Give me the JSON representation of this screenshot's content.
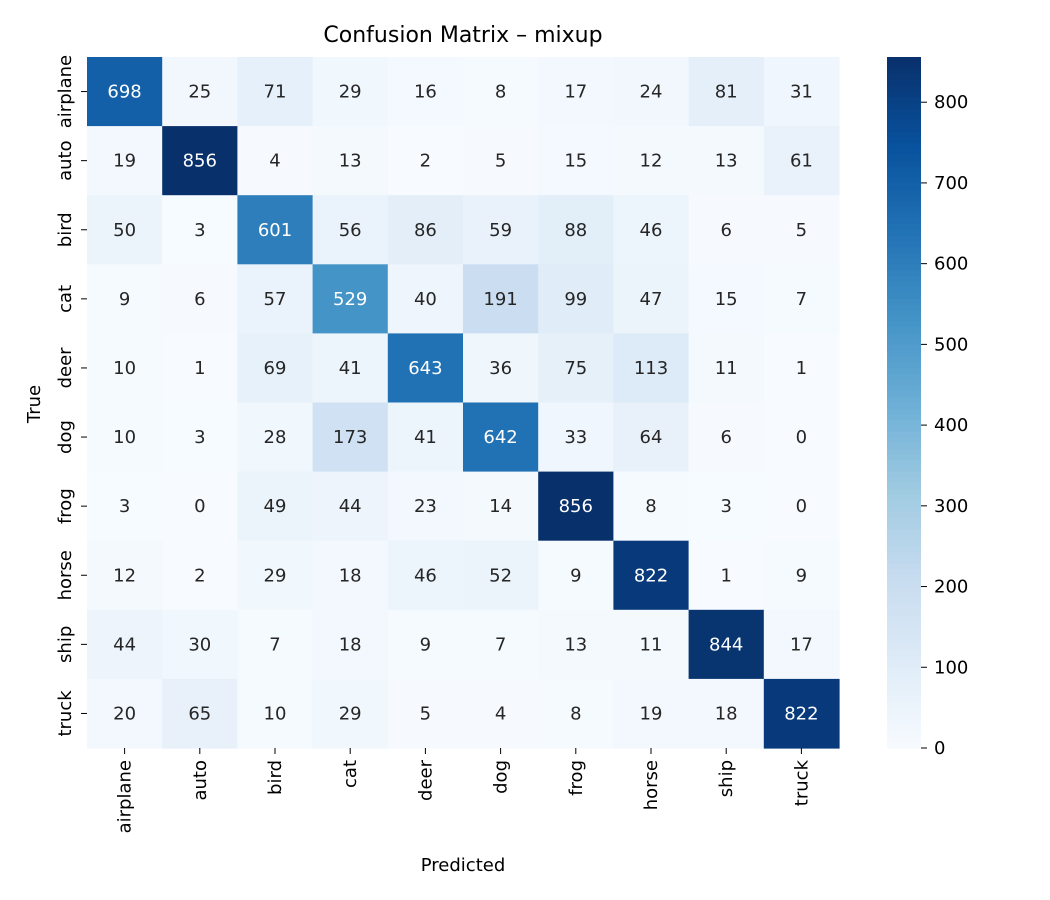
{
  "chart_data": {
    "type": "heatmap",
    "title": "Confusion Matrix – mixup",
    "xlabel": "Predicted",
    "ylabel": "True",
    "x_categories": [
      "airplane",
      "auto",
      "bird",
      "cat",
      "deer",
      "dog",
      "frog",
      "horse",
      "ship",
      "truck"
    ],
    "y_categories": [
      "airplane",
      "auto",
      "bird",
      "cat",
      "deer",
      "dog",
      "frog",
      "horse",
      "ship",
      "truck"
    ],
    "values": [
      [
        698,
        25,
        71,
        29,
        16,
        8,
        17,
        24,
        81,
        31
      ],
      [
        19,
        856,
        4,
        13,
        2,
        5,
        15,
        12,
        13,
        61
      ],
      [
        50,
        3,
        601,
        56,
        86,
        59,
        88,
        46,
        6,
        5
      ],
      [
        9,
        6,
        57,
        529,
        40,
        191,
        99,
        47,
        15,
        7
      ],
      [
        10,
        1,
        69,
        41,
        643,
        36,
        75,
        113,
        11,
        1
      ],
      [
        10,
        3,
        28,
        173,
        41,
        642,
        33,
        64,
        6,
        0
      ],
      [
        3,
        0,
        49,
        44,
        23,
        14,
        856,
        8,
        3,
        0
      ],
      [
        12,
        2,
        29,
        18,
        46,
        52,
        9,
        822,
        1,
        9
      ],
      [
        44,
        30,
        7,
        18,
        9,
        7,
        13,
        11,
        844,
        17
      ],
      [
        20,
        65,
        10,
        29,
        5,
        4,
        8,
        19,
        18,
        822
      ]
    ],
    "colormap": "Blues",
    "vmin": 0,
    "vmax": 856,
    "colorbar_ticks": [
      0,
      100,
      200,
      300,
      400,
      500,
      600,
      700,
      800
    ],
    "annotation_colors": {
      "light_bg": "#262626",
      "dark_bg": "#ffffff"
    },
    "grid": false
  }
}
